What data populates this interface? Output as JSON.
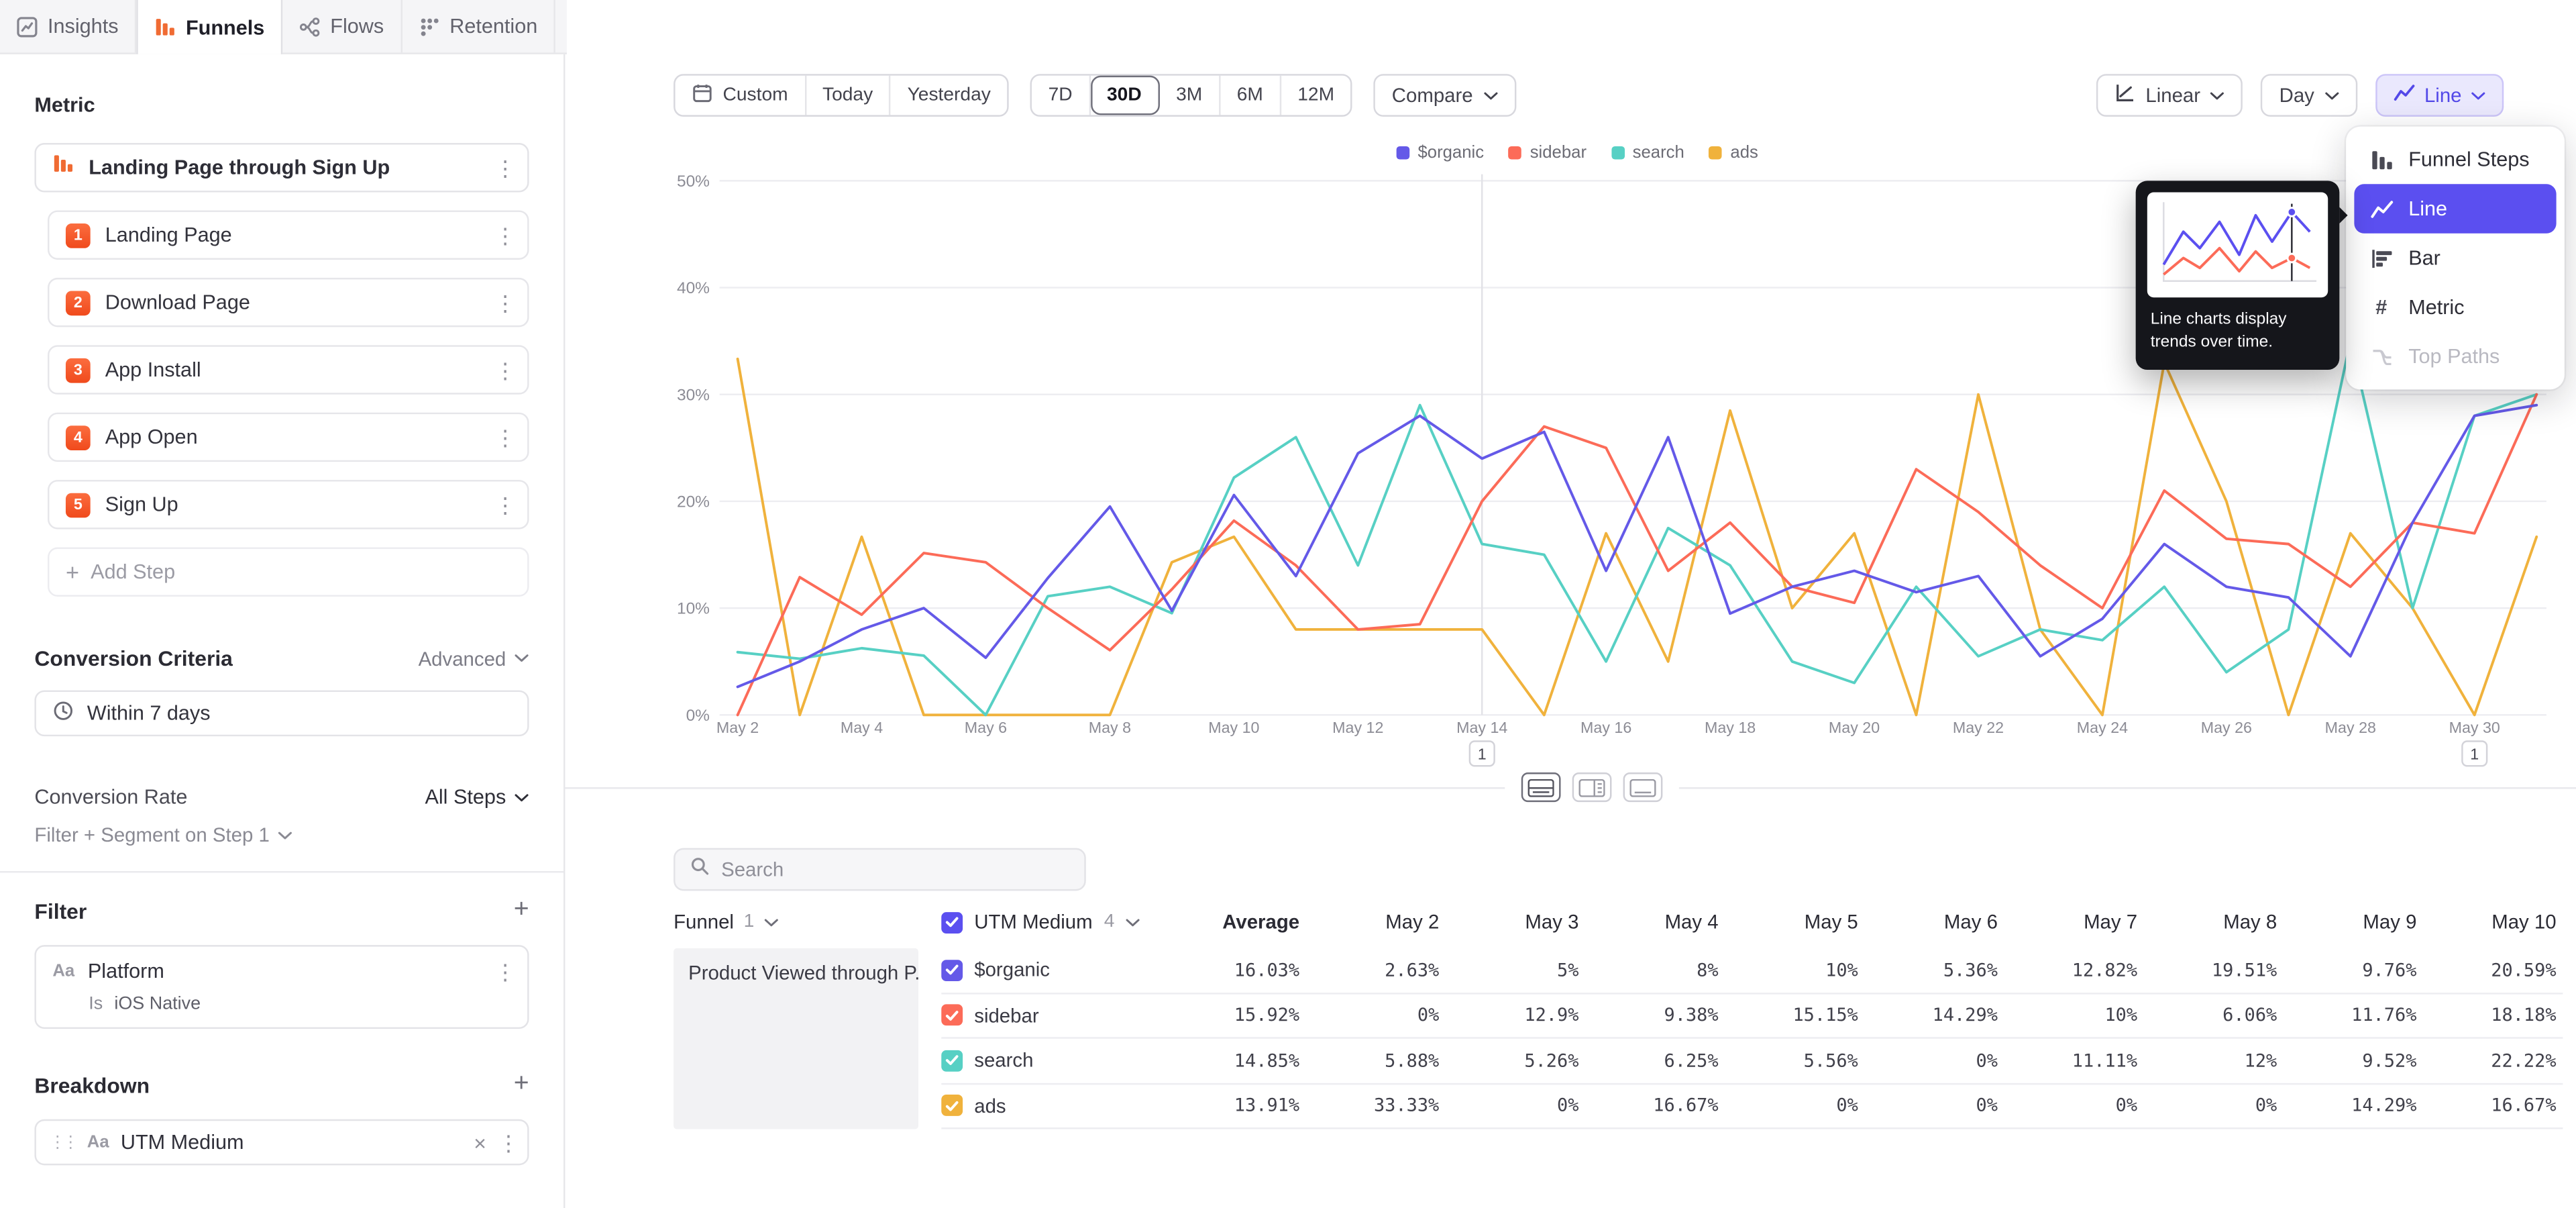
{
  "tabs": {
    "items": [
      {
        "label": "Insights"
      },
      {
        "label": "Funnels"
      },
      {
        "label": "Flows"
      },
      {
        "label": "Retention"
      }
    ],
    "active": "Funnels"
  },
  "sidebar": {
    "metric_heading": "Metric",
    "funnel_title": "Landing Page through Sign Up",
    "steps": [
      {
        "num": "1",
        "label": "Landing Page"
      },
      {
        "num": "2",
        "label": "Download Page"
      },
      {
        "num": "3",
        "label": "App Install"
      },
      {
        "num": "4",
        "label": "App Open"
      },
      {
        "num": "5",
        "label": "Sign Up"
      }
    ],
    "add_step_label": "Add Step",
    "conversion_criteria_heading": "Conversion Criteria",
    "advanced_label": "Advanced",
    "conversion_window": "Within 7 days",
    "conversion_rate_label": "Conversion Rate",
    "all_steps_label": "All Steps",
    "filter_segment_label": "Filter + Segment on Step 1",
    "filter_heading": "Filter",
    "filter_item": {
      "type_label": "Aa",
      "label": "Platform",
      "operator": "Is",
      "value": "iOS Native"
    },
    "breakdown_heading": "Breakdown",
    "breakdown_item": {
      "type_label": "Aa",
      "label": "UTM Medium"
    }
  },
  "toolbar": {
    "custom_label": "Custom",
    "today_label": "Today",
    "yesterday_label": "Yesterday",
    "ranges": [
      "7D",
      "30D",
      "3M",
      "6M",
      "12M"
    ],
    "active_range": "30D",
    "compare_label": "Compare",
    "scale_label": "Linear",
    "interval_label": "Day",
    "chart_type_label": "Line"
  },
  "chart_type_menu": {
    "items": [
      {
        "label": "Funnel Steps",
        "icon": "funnel-steps-icon"
      },
      {
        "label": "Line",
        "icon": "line-chart-icon",
        "selected": true
      },
      {
        "label": "Bar",
        "icon": "bar-chart-icon"
      },
      {
        "label": "Metric",
        "icon": "metric-icon"
      },
      {
        "label": "Top Paths",
        "icon": "top-paths-icon",
        "disabled": true
      }
    ]
  },
  "tooltip": {
    "text": "Line charts display trends over time."
  },
  "chart_data": {
    "type": "line",
    "x": [
      "May 2",
      "May 3",
      "May 4",
      "May 5",
      "May 6",
      "May 7",
      "May 8",
      "May 9",
      "May 10",
      "May 11",
      "May 12",
      "May 13",
      "May 14",
      "May 15",
      "May 16",
      "May 17",
      "May 18",
      "May 19",
      "May 20",
      "May 21",
      "May 22",
      "May 23",
      "May 24",
      "May 25",
      "May 26",
      "May 27",
      "May 28",
      "May 29",
      "May 30",
      "May 31"
    ],
    "x_tick_step": 2,
    "ylim": [
      0,
      50
    ],
    "yticks": [
      "0%",
      "10%",
      "20%",
      "30%",
      "40%",
      "50%"
    ],
    "legend_position": "top",
    "series": [
      {
        "name": "$organic",
        "color": "#6459e8",
        "values": [
          2.63,
          5,
          8,
          10,
          5.36,
          12.82,
          19.51,
          9.76,
          20.59,
          13,
          24.5,
          28,
          24,
          26.5,
          13.5,
          26,
          9.5,
          12,
          13.5,
          11.5,
          13,
          5.5,
          9,
          16,
          12,
          11,
          5.5,
          18,
          28,
          29
        ]
      },
      {
        "name": "sidebar",
        "color": "#fc6b58",
        "values": [
          0,
          12.9,
          9.38,
          15.15,
          14.29,
          10,
          6.06,
          11.76,
          18.18,
          14,
          8,
          8.5,
          20,
          27,
          25,
          13.5,
          18,
          12,
          10.5,
          23,
          19,
          14,
          10,
          21,
          16.5,
          16,
          12,
          18,
          17,
          30
        ]
      },
      {
        "name": "search",
        "color": "#57d0c4",
        "values": [
          5.88,
          5.26,
          6.25,
          5.56,
          0,
          11.11,
          12,
          9.52,
          22.22,
          26,
          14,
          29,
          16,
          15,
          5,
          17.5,
          14,
          5,
          3,
          12,
          5.5,
          8,
          7,
          12,
          4,
          8,
          35,
          10,
          28,
          30
        ]
      },
      {
        "name": "ads",
        "color": "#f0b23c",
        "values": [
          33.33,
          0,
          16.67,
          0,
          0,
          0,
          0,
          14.29,
          16.67,
          8,
          8,
          8,
          8,
          0,
          17,
          5,
          28.5,
          10,
          17,
          0,
          30,
          8,
          0,
          33,
          20,
          0,
          17,
          10,
          0,
          16.67
        ]
      }
    ],
    "markers": [
      {
        "x": "May 14",
        "label": "1",
        "line": true
      },
      {
        "x": "May 30",
        "label": "1",
        "line": false
      }
    ]
  },
  "table": {
    "search_placeholder": "Search",
    "funnel_header": {
      "label": "Funnel",
      "count": "1"
    },
    "breakdown_header": {
      "label": "UTM Medium",
      "count": "4"
    },
    "average_label": "Average",
    "date_columns": [
      "May 2",
      "May 3",
      "May 4",
      "May 5",
      "May 6",
      "May 7",
      "May 8",
      "May 9",
      "May 10"
    ],
    "group_label": "Product Viewed through P...",
    "rows": [
      {
        "label": "$organic",
        "color": "#6459e8",
        "average": "16.03%",
        "values": [
          "2.63%",
          "5%",
          "8%",
          "10%",
          "5.36%",
          "12.82%",
          "19.51%",
          "9.76%",
          "20.59%"
        ]
      },
      {
        "label": "sidebar",
        "color": "#fc6b58",
        "average": "15.92%",
        "values": [
          "0%",
          "12.9%",
          "9.38%",
          "15.15%",
          "14.29%",
          "10%",
          "6.06%",
          "11.76%",
          "18.18%"
        ]
      },
      {
        "label": "search",
        "color": "#57d0c4",
        "average": "14.85%",
        "values": [
          "5.88%",
          "5.26%",
          "6.25%",
          "5.56%",
          "0%",
          "11.11%",
          "12%",
          "9.52%",
          "22.22%"
        ]
      },
      {
        "label": "ads",
        "color": "#f0b23c",
        "average": "13.91%",
        "values": [
          "33.33%",
          "0%",
          "16.67%",
          "0%",
          "0%",
          "0%",
          "0%",
          "14.29%",
          "16.67%"
        ]
      }
    ]
  }
}
